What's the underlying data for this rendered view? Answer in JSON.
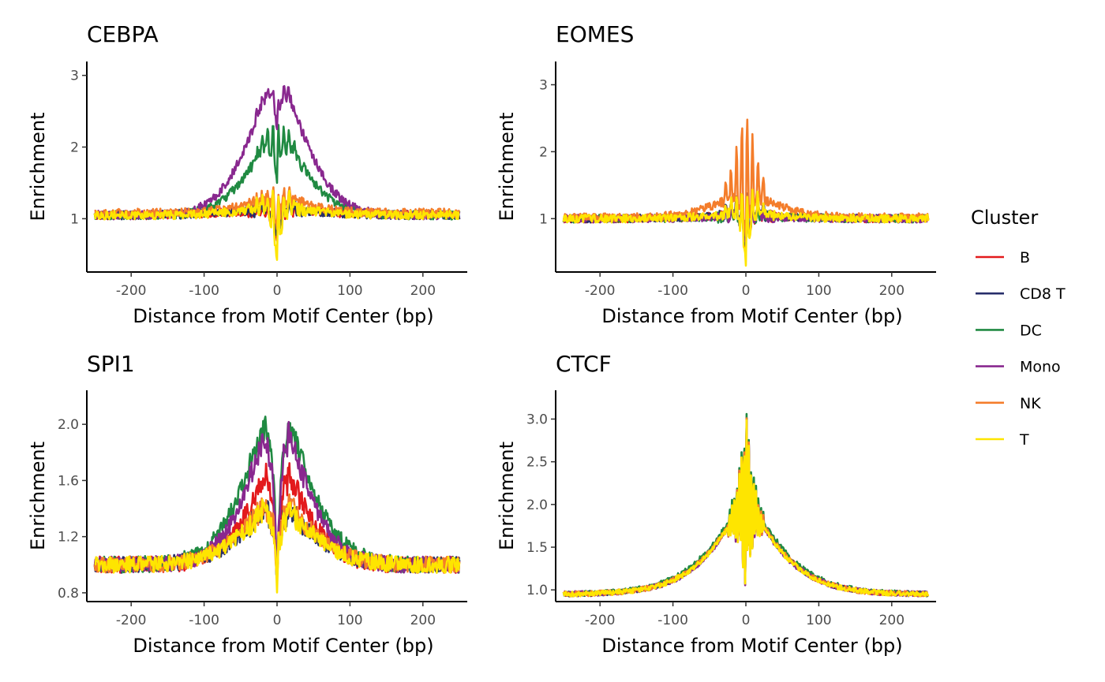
{
  "legend": {
    "title": "Cluster",
    "items": [
      {
        "label": "B",
        "color": "#e31a1c"
      },
      {
        "label": "CD8 T",
        "color": "#272e6a"
      },
      {
        "label": "DC",
        "color": "#208a42"
      },
      {
        "label": "Mono",
        "color": "#89288f"
      },
      {
        "label": "NK",
        "color": "#f47d2b"
      },
      {
        "label": "T",
        "color": "#fee500"
      }
    ]
  },
  "chart_data": [
    {
      "type": "line",
      "title": "CEBPA",
      "xlabel": "Distance from Motif Center (bp)",
      "ylabel": "Enrichment",
      "xlim": [
        -250,
        250
      ],
      "ylim": [
        0.3,
        3.15
      ],
      "xticks": [
        -200,
        -100,
        0,
        100,
        200
      ],
      "yticks": [
        1,
        2,
        3
      ],
      "ytick_labels": [
        "1",
        "2",
        "3"
      ],
      "series": [
        {
          "name": "B",
          "profile": {
            "type": "motif",
            "base": 1.05,
            "peak": 1.12,
            "width": 90,
            "drop": 0.35,
            "spike": 0.4
          }
        },
        {
          "name": "CD8 T",
          "profile": {
            "type": "motif",
            "base": 1.05,
            "peak": 1.12,
            "width": 90,
            "drop": 0.35,
            "spike": 0.45
          }
        },
        {
          "name": "DC",
          "profile": {
            "type": "motif",
            "base": 1.05,
            "peak": 2.15,
            "width": 55,
            "drop": 0.6,
            "spike": 0.6
          }
        },
        {
          "name": "Mono",
          "profile": {
            "type": "motif",
            "base": 1.05,
            "peak": 2.95,
            "width": 55,
            "drop": 0.75,
            "spike": 0.35
          }
        },
        {
          "name": "NK",
          "profile": {
            "type": "motif",
            "base": 1.08,
            "peak": 1.28,
            "width": 60,
            "drop": 0.4,
            "spike": 0.4
          }
        },
        {
          "name": "T",
          "profile": {
            "type": "motif",
            "base": 1.05,
            "peak": 1.15,
            "width": 70,
            "drop": 0.8,
            "spike": 0.8
          }
        }
      ]
    },
    {
      "type": "line",
      "title": "EOMES",
      "xlabel": "Distance from Motif Center (bp)",
      "ylabel": "Enrichment",
      "xlim": [
        -250,
        250
      ],
      "ylim": [
        0.25,
        3.3
      ],
      "xticks": [
        -200,
        -100,
        0,
        100,
        200
      ],
      "yticks": [
        1,
        2,
        3
      ],
      "ytick_labels": [
        "1",
        "2",
        "3"
      ],
      "series": [
        {
          "name": "B",
          "profile": {
            "type": "motif",
            "base": 1.0,
            "peak": 1.05,
            "width": 80,
            "drop": 0.45,
            "spike": 0.7
          }
        },
        {
          "name": "CD8 T",
          "profile": {
            "type": "motif",
            "base": 1.0,
            "peak": 1.05,
            "width": 80,
            "drop": 0.45,
            "spike": 0.8
          }
        },
        {
          "name": "DC",
          "profile": {
            "type": "motif",
            "base": 1.0,
            "peak": 1.03,
            "width": 80,
            "drop": 0.35,
            "spike": 0.6
          }
        },
        {
          "name": "Mono",
          "profile": {
            "type": "motif",
            "base": 1.0,
            "peak": 1.03,
            "width": 80,
            "drop": 0.4,
            "spike": 0.6
          }
        },
        {
          "name": "NK",
          "profile": {
            "type": "motif",
            "base": 1.02,
            "peak": 1.35,
            "width": 60,
            "drop": 0.6,
            "spike": 1.9
          }
        },
        {
          "name": "T",
          "profile": {
            "type": "motif",
            "base": 1.0,
            "peak": 1.08,
            "width": 70,
            "drop": 0.7,
            "spike": 0.9
          }
        }
      ]
    },
    {
      "type": "line",
      "title": "SPI1",
      "xlabel": "Distance from Motif Center (bp)",
      "ylabel": "Enrichment",
      "xlim": [
        -250,
        250
      ],
      "ylim": [
        0.76,
        2.22
      ],
      "xticks": [
        -200,
        -100,
        0,
        100,
        200
      ],
      "yticks": [
        0.8,
        1.2,
        1.6,
        2.0
      ],
      "ytick_labels": [
        "0.8",
        "1.2",
        "1.6",
        "2.0"
      ],
      "series": [
        {
          "name": "B",
          "profile": {
            "type": "motif",
            "base": 1.0,
            "peak": 1.72,
            "width": 55,
            "drop": 0.8,
            "spike": 0.1
          }
        },
        {
          "name": "CD8 T",
          "profile": {
            "type": "motif",
            "base": 1.0,
            "peak": 1.42,
            "width": 65,
            "drop": 0.5,
            "spike": 0.12
          }
        },
        {
          "name": "DC",
          "profile": {
            "type": "motif",
            "base": 1.0,
            "peak": 2.12,
            "width": 60,
            "drop": 1.2,
            "spike": 0.05
          }
        },
        {
          "name": "Mono",
          "profile": {
            "type": "motif",
            "base": 1.0,
            "peak": 2.05,
            "width": 55,
            "drop": 1.2,
            "spike": 0.1
          }
        },
        {
          "name": "NK",
          "profile": {
            "type": "motif",
            "base": 1.0,
            "peak": 1.45,
            "width": 65,
            "drop": 0.55,
            "spike": 0.12
          }
        },
        {
          "name": "T",
          "profile": {
            "type": "motif",
            "base": 1.0,
            "peak": 1.42,
            "width": 65,
            "drop": 0.55,
            "spike": 0.15
          }
        }
      ]
    },
    {
      "type": "line",
      "title": "CTCF",
      "xlabel": "Distance from Motif Center (bp)",
      "ylabel": "Enrichment",
      "xlim": [
        -250,
        250
      ],
      "ylim": [
        0.9,
        3.3
      ],
      "xticks": [
        -200,
        -100,
        0,
        100,
        200
      ],
      "yticks": [
        1.0,
        1.5,
        2.0,
        2.5,
        3.0
      ],
      "ytick_labels": [
        "1.0",
        "1.5",
        "2.0",
        "2.5",
        "3.0"
      ],
      "series": [
        {
          "name": "B",
          "profile": {
            "type": "ctcf",
            "base": 0.95,
            "peak": 2.05,
            "width": 60
          }
        },
        {
          "name": "CD8 T",
          "profile": {
            "type": "ctcf",
            "base": 0.95,
            "peak": 2.05,
            "width": 60
          }
        },
        {
          "name": "DC",
          "profile": {
            "type": "ctcf",
            "base": 0.95,
            "peak": 2.1,
            "width": 62
          }
        },
        {
          "name": "Mono",
          "profile": {
            "type": "ctcf",
            "base": 0.95,
            "peak": 2.02,
            "width": 60
          }
        },
        {
          "name": "NK",
          "profile": {
            "type": "ctcf",
            "base": 0.95,
            "peak": 2.05,
            "width": 60
          }
        },
        {
          "name": "T",
          "profile": {
            "type": "ctcf",
            "base": 0.95,
            "peak": 2.03,
            "width": 60
          }
        }
      ]
    }
  ]
}
